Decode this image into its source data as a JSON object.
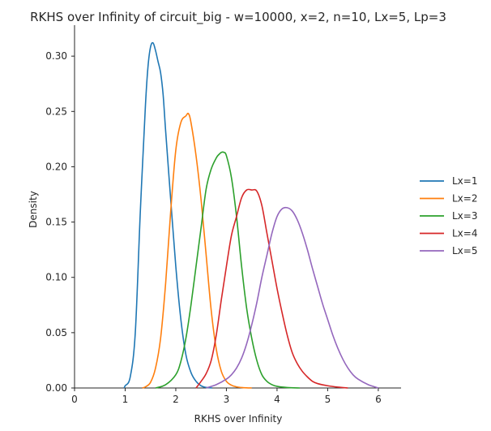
{
  "chart_data": {
    "type": "line",
    "title": "RKHS over Infinity of circuit_big - w=10000, x=2, n=10, Lx=5, Lp=3",
    "xlabel": "RKHS over Infinity",
    "ylabel": "Density",
    "xlim": [
      0,
      6.45
    ],
    "ylim": [
      0,
      0.328
    ],
    "xticks": [
      "0",
      "1",
      "2",
      "3",
      "4",
      "5",
      "6"
    ],
    "yticks": [
      "0.00",
      "0.05",
      "0.10",
      "0.15",
      "0.20",
      "0.25",
      "0.30"
    ],
    "legend_position": "right",
    "series": [
      {
        "name": "Lx=1",
        "color": "#1f77b4",
        "x": [
          0.98,
          1.0,
          1.1,
          1.2,
          1.3,
          1.4,
          1.45,
          1.5,
          1.55,
          1.6,
          1.65,
          1.7,
          1.75,
          1.8,
          1.9,
          2.0,
          2.1,
          2.2,
          2.3,
          2.4,
          2.5,
          2.6,
          2.7,
          2.72
        ],
        "y": [
          0.0,
          0.002,
          0.01,
          0.05,
          0.16,
          0.255,
          0.29,
          0.308,
          0.312,
          0.305,
          0.295,
          0.285,
          0.265,
          0.232,
          0.17,
          0.11,
          0.062,
          0.03,
          0.014,
          0.006,
          0.002,
          0.0005,
          0.0001,
          0.0
        ]
      },
      {
        "name": "Lx=2",
        "color": "#ff7f0e",
        "x": [
          1.34,
          1.4,
          1.5,
          1.6,
          1.7,
          1.8,
          1.9,
          2.0,
          2.1,
          2.2,
          2.25,
          2.3,
          2.4,
          2.5,
          2.6,
          2.7,
          2.8,
          2.9,
          3.0,
          3.1,
          3.2,
          3.3,
          3.4,
          3.5
        ],
        "y": [
          0.0,
          0.001,
          0.005,
          0.018,
          0.045,
          0.095,
          0.16,
          0.215,
          0.24,
          0.246,
          0.248,
          0.24,
          0.21,
          0.17,
          0.12,
          0.07,
          0.035,
          0.015,
          0.006,
          0.0025,
          0.001,
          0.0004,
          0.0001,
          0.0
        ]
      },
      {
        "name": "Lx=3",
        "color": "#2ca02c",
        "x": [
          1.6,
          1.8,
          2.0,
          2.1,
          2.2,
          2.3,
          2.4,
          2.5,
          2.6,
          2.7,
          2.8,
          2.85,
          2.9,
          2.95,
          3.0,
          3.1,
          3.2,
          3.3,
          3.4,
          3.5,
          3.6,
          3.7,
          3.8,
          3.9,
          4.0,
          4.2,
          4.45
        ],
        "y": [
          0.0,
          0.003,
          0.012,
          0.024,
          0.045,
          0.075,
          0.11,
          0.145,
          0.18,
          0.198,
          0.208,
          0.211,
          0.213,
          0.213,
          0.21,
          0.19,
          0.155,
          0.11,
          0.072,
          0.045,
          0.025,
          0.012,
          0.006,
          0.003,
          0.0015,
          0.0004,
          0.0
        ]
      },
      {
        "name": "Lx=4",
        "color": "#d62728",
        "x": [
          2.4,
          2.5,
          2.6,
          2.7,
          2.8,
          2.9,
          3.0,
          3.1,
          3.2,
          3.3,
          3.4,
          3.5,
          3.6,
          3.7,
          3.8,
          3.9,
          4.0,
          4.1,
          4.2,
          4.3,
          4.4,
          4.5,
          4.6,
          4.7,
          4.8,
          5.0,
          5.2,
          5.4
        ],
        "y": [
          0.0,
          0.006,
          0.013,
          0.025,
          0.048,
          0.08,
          0.11,
          0.138,
          0.155,
          0.172,
          0.179,
          0.179,
          0.178,
          0.165,
          0.14,
          0.115,
          0.09,
          0.068,
          0.048,
          0.032,
          0.022,
          0.015,
          0.01,
          0.006,
          0.004,
          0.002,
          0.0008,
          0.0
        ]
      },
      {
        "name": "Lx=5",
        "color": "#9467bd",
        "x": [
          2.6,
          2.8,
          3.0,
          3.1,
          3.2,
          3.3,
          3.4,
          3.5,
          3.6,
          3.7,
          3.8,
          3.9,
          4.0,
          4.1,
          4.2,
          4.3,
          4.4,
          4.5,
          4.6,
          4.7,
          4.8,
          4.9,
          5.0,
          5.1,
          5.2,
          5.3,
          5.4,
          5.5,
          5.6,
          5.8,
          6.0
        ],
        "y": [
          0.0,
          0.003,
          0.008,
          0.012,
          0.018,
          0.027,
          0.04,
          0.057,
          0.077,
          0.1,
          0.12,
          0.14,
          0.155,
          0.162,
          0.163,
          0.16,
          0.152,
          0.14,
          0.125,
          0.108,
          0.092,
          0.076,
          0.062,
          0.048,
          0.036,
          0.026,
          0.018,
          0.012,
          0.008,
          0.003,
          0.0
        ]
      }
    ]
  }
}
